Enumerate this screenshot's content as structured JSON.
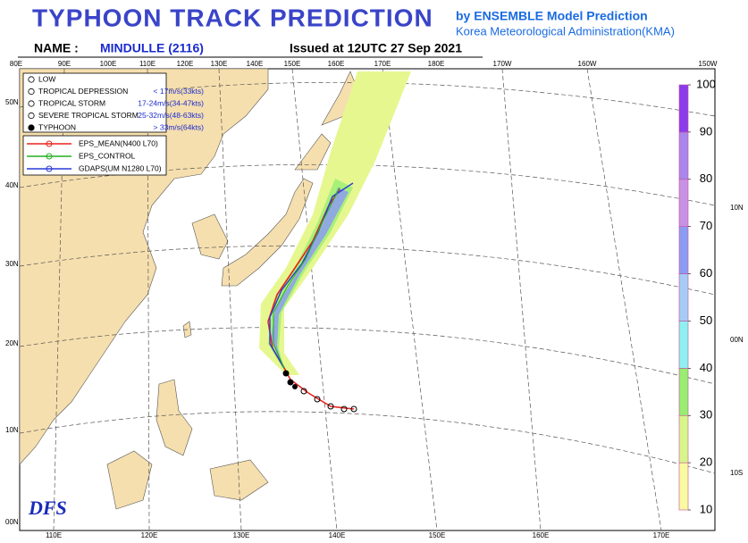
{
  "header": {
    "title": "TYPHOON TRACK PREDICTION",
    "source_line1": "by ENSEMBLE Model Prediction",
    "source_line2": "Korea Meteorological Administration(KMA)",
    "name_label": "NAME :",
    "name": "MINDULLE (2116)",
    "issued": "Issued at 12UTC 27 Sep 2021"
  },
  "map": {
    "top_longitudes": [
      "80E",
      "90E",
      "100E",
      "110E",
      "120E",
      "130E",
      "140E",
      "150E",
      "160E",
      "170E",
      "180E",
      "170W",
      "160W",
      "150W"
    ],
    "bottom_longitudes": [
      "110E",
      "120E",
      "130E",
      "140E",
      "150E",
      "160E",
      "170E"
    ],
    "left_latitudes": [
      "50N",
      "40N",
      "30N",
      "20N",
      "10N",
      "00N"
    ],
    "right_latitudes": [
      "10N",
      "00N",
      "10S"
    ],
    "logo": "DFS"
  },
  "legend": {
    "intensity": [
      {
        "name": "LOW"
      },
      {
        "name": "TROPICAL DEPRESSION",
        "speed": "< 17m/s(33kts)"
      },
      {
        "name": "TROPICAL STORM",
        "speed": "17-24m/s(34-47kts)"
      },
      {
        "name": "SEVERE TROPICAL STORM",
        "speed": "25-32m/s(48-63kts)"
      },
      {
        "name": "TYPHOON",
        "speed": "> 33m/s(64kts)"
      }
    ],
    "models": [
      {
        "name": "EPS_MEAN(N400 L70)",
        "color": "#e8231e"
      },
      {
        "name": "EPS_CONTROL",
        "color": "#22b022"
      },
      {
        "name": "GDAPS(UM N1280 L70)",
        "color": "#2a3bd8"
      }
    ]
  },
  "colorbar": {
    "ticks": [
      10,
      20,
      30,
      40,
      50,
      60,
      70,
      80,
      90,
      100
    ],
    "colors": [
      "#fafaa0",
      "#d8f58c",
      "#98ee70",
      "#8ef0f0",
      "#a6ccf6",
      "#8c9cf0",
      "#c892e4",
      "#a986ec",
      "#8a3cea"
    ]
  }
}
